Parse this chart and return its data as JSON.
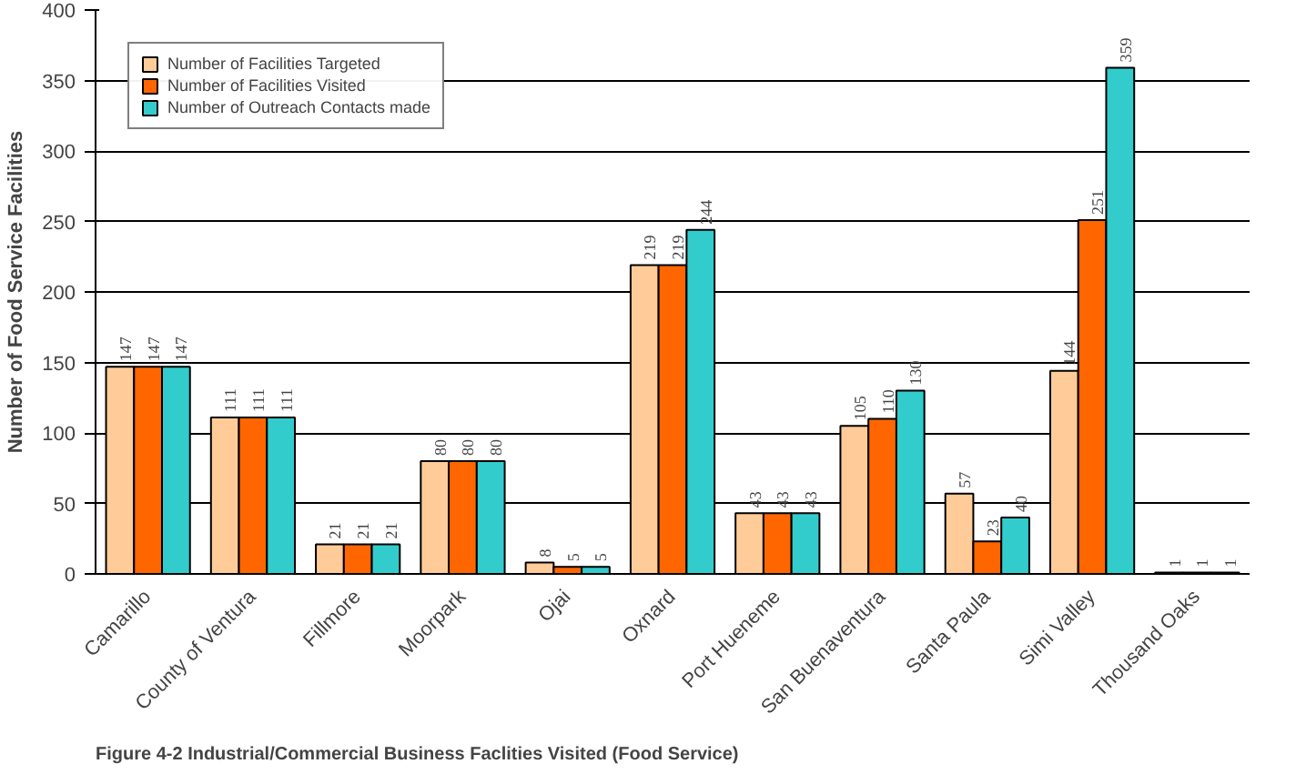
{
  "chart_data": {
    "type": "bar",
    "ylabel": "Number of Food Service Facilities",
    "categories": [
      "Camarillo",
      "County of Ventura",
      "Fillmore",
      "Moorpark",
      "Ojai",
      "Oxnard",
      "Port Hueneme",
      "San Buenaventura",
      "Santa Paula",
      "Simi Valley",
      "Thousand Oaks"
    ],
    "series": [
      {
        "name": "Number of Facilities Targeted",
        "color": "#ffcc99",
        "values": [
          147,
          111,
          21,
          80,
          8,
          219,
          43,
          105,
          57,
          144,
          1
        ]
      },
      {
        "name": "Number of Facilities Visited",
        "color": "#ff6600",
        "values": [
          147,
          111,
          21,
          80,
          5,
          219,
          43,
          110,
          23,
          251,
          1
        ]
      },
      {
        "name": "Number of Outreach Contacts made",
        "color": "#33cccc",
        "values": [
          147,
          111,
          21,
          80,
          5,
          244,
          43,
          130,
          40,
          359,
          1
        ]
      }
    ],
    "ylim": [
      0,
      400
    ],
    "yticks": [
      0,
      50,
      100,
      150,
      200,
      250,
      300,
      350,
      400
    ],
    "grid": "y",
    "legend": "top left",
    "data_labels": true,
    "annotations": [
      "Figure 4-2 Industrial/Commercial Business Faclities Visited (Food Service)"
    ]
  }
}
